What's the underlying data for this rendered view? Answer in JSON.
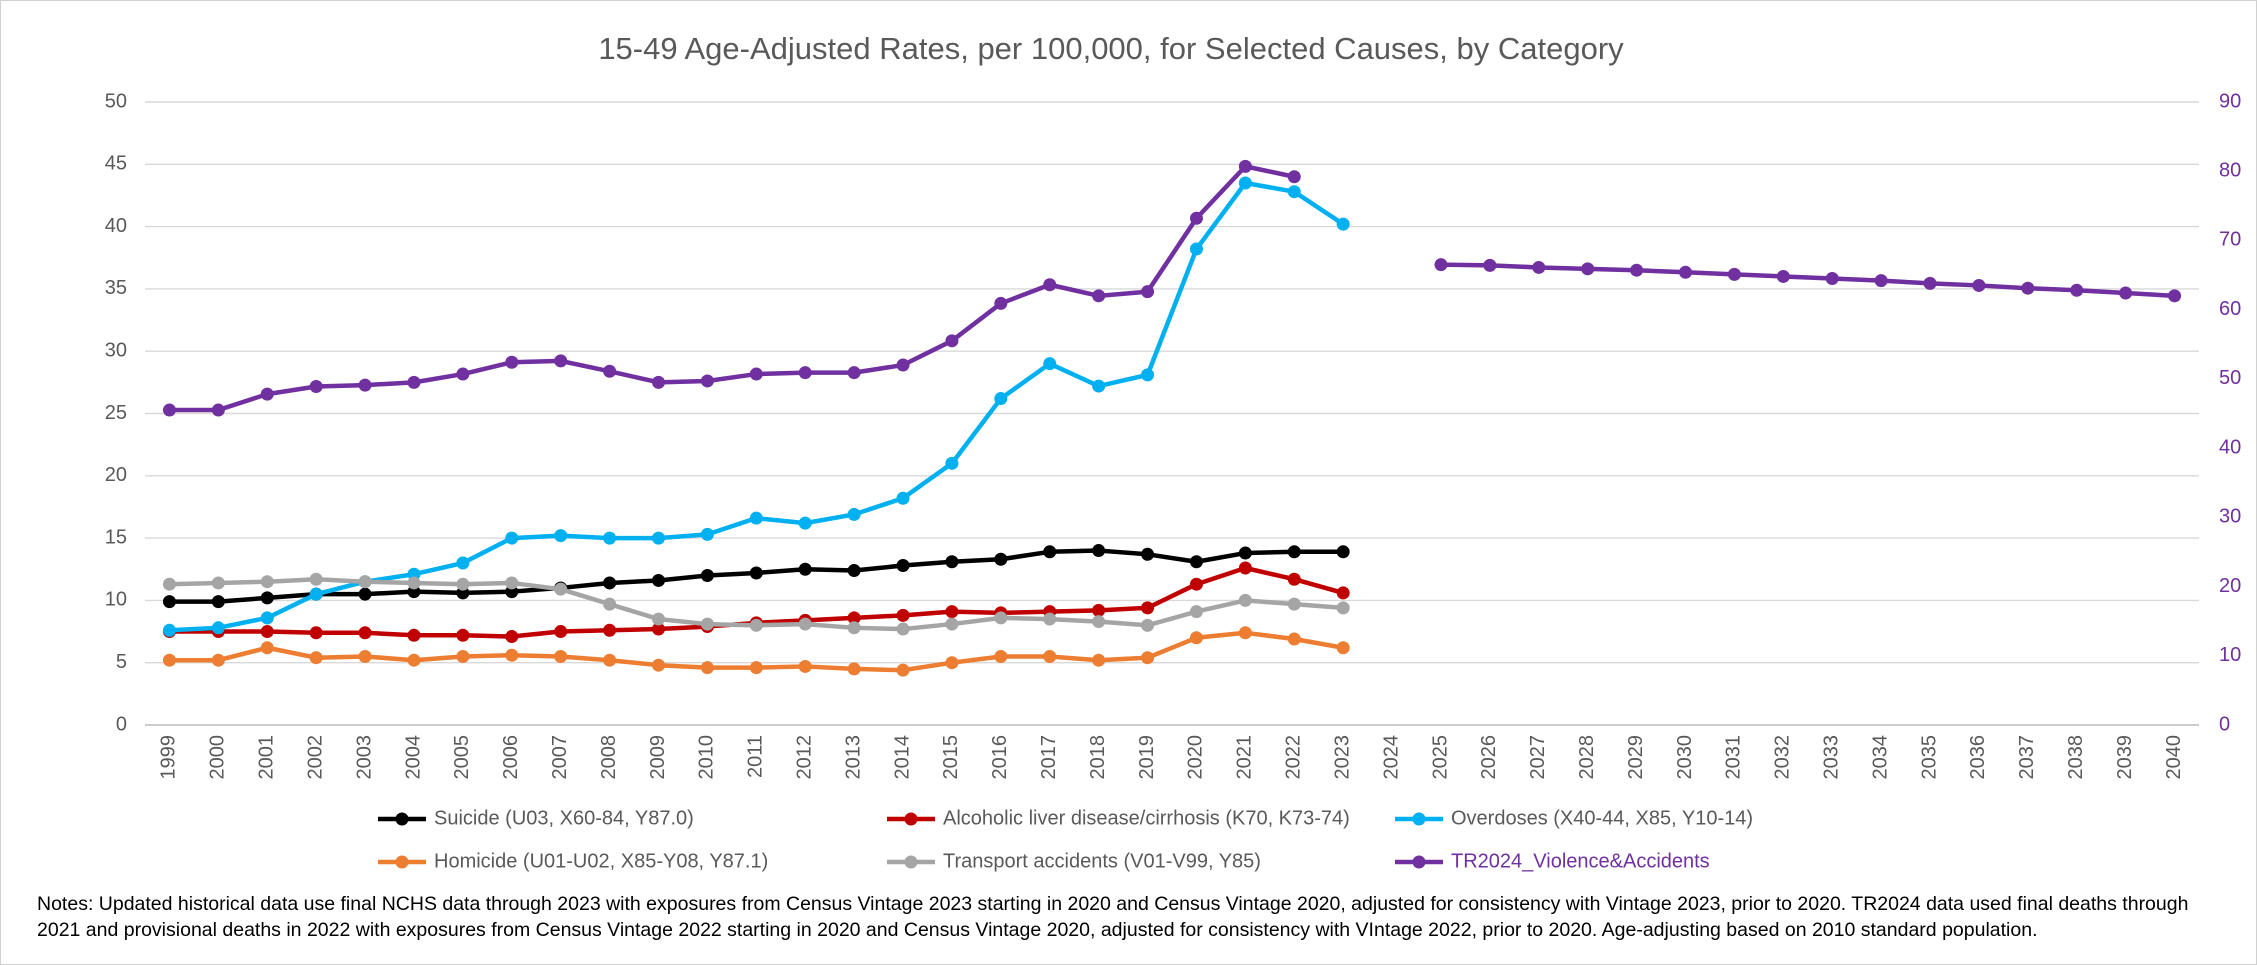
{
  "chart_data": {
    "type": "line",
    "title": "15-49 Age-Adjusted Rates, per 100,000, for Selected Causes, by Category",
    "categories": [
      "1999",
      "2000",
      "2001",
      "2002",
      "2003",
      "2004",
      "2005",
      "2006",
      "2007",
      "2008",
      "2009",
      "2010",
      "2011",
      "2012",
      "2013",
      "2014",
      "2015",
      "2016",
      "2017",
      "2018",
      "2019",
      "2020",
      "2021",
      "2022",
      "2023",
      "2024",
      "2025",
      "2026",
      "2027",
      "2028",
      "2029",
      "2030",
      "2031",
      "2032",
      "2033",
      "2034",
      "2035",
      "2036",
      "2037",
      "2038",
      "2039",
      "2040"
    ],
    "series": [
      {
        "name": "Suicide (U03, X60-84, Y87.0)",
        "color": "#000000",
        "values": [
          9.9,
          9.9,
          10.2,
          10.5,
          10.5,
          10.7,
          10.6,
          10.7,
          11.0,
          11.4,
          11.6,
          12.0,
          12.2,
          12.5,
          12.4,
          12.8,
          13.1,
          13.3,
          13.9,
          14.0,
          13.7,
          13.1,
          13.8,
          13.9,
          13.9,
          null,
          null,
          null,
          null,
          null,
          null,
          null,
          null,
          null,
          null,
          null,
          null,
          null,
          null,
          null,
          null,
          null
        ]
      },
      {
        "name": "Alcoholic liver disease/cirrhosis (K70, K73-74)",
        "color": "#c00000",
        "values": [
          7.5,
          7.5,
          7.5,
          7.4,
          7.4,
          7.2,
          7.2,
          7.1,
          7.5,
          7.6,
          7.7,
          7.9,
          8.2,
          8.4,
          8.6,
          8.8,
          9.1,
          9.0,
          9.1,
          9.2,
          9.4,
          11.3,
          12.6,
          11.7,
          10.6,
          null,
          null,
          null,
          null,
          null,
          null,
          null,
          null,
          null,
          null,
          null,
          null,
          null,
          null,
          null,
          null,
          null
        ]
      },
      {
        "name": "Overdoses (X40-44, X85, Y10-14)",
        "color": "#00b0f0",
        "values": [
          7.6,
          7.8,
          8.6,
          10.5,
          11.5,
          12.1,
          13.0,
          15.0,
          15.2,
          15.0,
          15.0,
          15.3,
          16.6,
          16.2,
          16.9,
          18.2,
          21.0,
          26.2,
          29.0,
          27.2,
          28.1,
          38.2,
          43.5,
          42.8,
          40.2,
          null,
          null,
          null,
          null,
          null,
          null,
          null,
          null,
          null,
          null,
          null,
          null,
          null,
          null,
          null,
          null,
          null
        ]
      },
      {
        "name": "Homicide (U01-U02, X85-Y08, Y87.1)",
        "color": "#ed7d31",
        "values": [
          5.2,
          5.2,
          6.2,
          5.4,
          5.5,
          5.2,
          5.5,
          5.6,
          5.5,
          5.2,
          4.8,
          4.6,
          4.6,
          4.7,
          4.5,
          4.4,
          5.0,
          5.5,
          5.5,
          5.2,
          5.4,
          7.0,
          7.4,
          6.9,
          6.2,
          null,
          null,
          null,
          null,
          null,
          null,
          null,
          null,
          null,
          null,
          null,
          null,
          null,
          null,
          null,
          null,
          null
        ]
      },
      {
        "name": "Transport accidents (V01-V99, Y85)",
        "color": "#a5a5a5",
        "values": [
          11.3,
          11.4,
          11.5,
          11.7,
          11.5,
          11.4,
          11.3,
          11.4,
          10.9,
          9.7,
          8.5,
          8.1,
          8.0,
          8.1,
          7.8,
          7.7,
          8.1,
          8.6,
          8.5,
          8.3,
          8.0,
          9.1,
          10.0,
          9.7,
          9.4,
          null,
          null,
          null,
          null,
          null,
          null,
          null,
          null,
          null,
          null,
          null,
          null,
          null,
          null,
          null,
          null,
          null
        ]
      },
      {
        "name": "TR2024_Violence&Accidents",
        "color": "#7030a0",
        "axis": "y2",
        "values": [
          45.5,
          45.5,
          47.8,
          48.9,
          49.1,
          49.5,
          50.7,
          52.4,
          52.6,
          51.1,
          49.5,
          49.7,
          50.7,
          50.9,
          50.9,
          52.0,
          55.5,
          60.9,
          63.6,
          62.0,
          62.6,
          73.2,
          80.7,
          79.2,
          null,
          null,
          66.5,
          66.4,
          66.1,
          65.9,
          65.7,
          65.4,
          65.1,
          64.8,
          64.5,
          64.2,
          63.8,
          63.5,
          63.1,
          62.8,
          62.4,
          62.0
        ]
      }
    ],
    "ylim": [
      0,
      50
    ],
    "yticks": [
      0,
      5,
      10,
      15,
      20,
      25,
      30,
      35,
      40,
      45,
      50
    ],
    "y2lim": [
      0,
      90
    ],
    "y2ticks": [
      0,
      10,
      20,
      30,
      40,
      50,
      60,
      70,
      80,
      90
    ],
    "y2_color": "#7030a0",
    "grid": true,
    "legend": "bottom",
    "notes": "Notes: Updated historical data use final NCHS data through 2023 with exposures from Census Vintage 2023 starting in 2020 and Census Vintage 2020, adjusted for consistency with Vintage 2023, prior to 2020.  TR2024 data used final deaths through 2021 and provisional deaths in 2022 with exposures from Census Vintage 2022 starting in 2020 and Census Vintage 2020, adjusted for consistency with VIntage 2022, prior to 2020. Age-adjusting based on 2010 standard population."
  }
}
